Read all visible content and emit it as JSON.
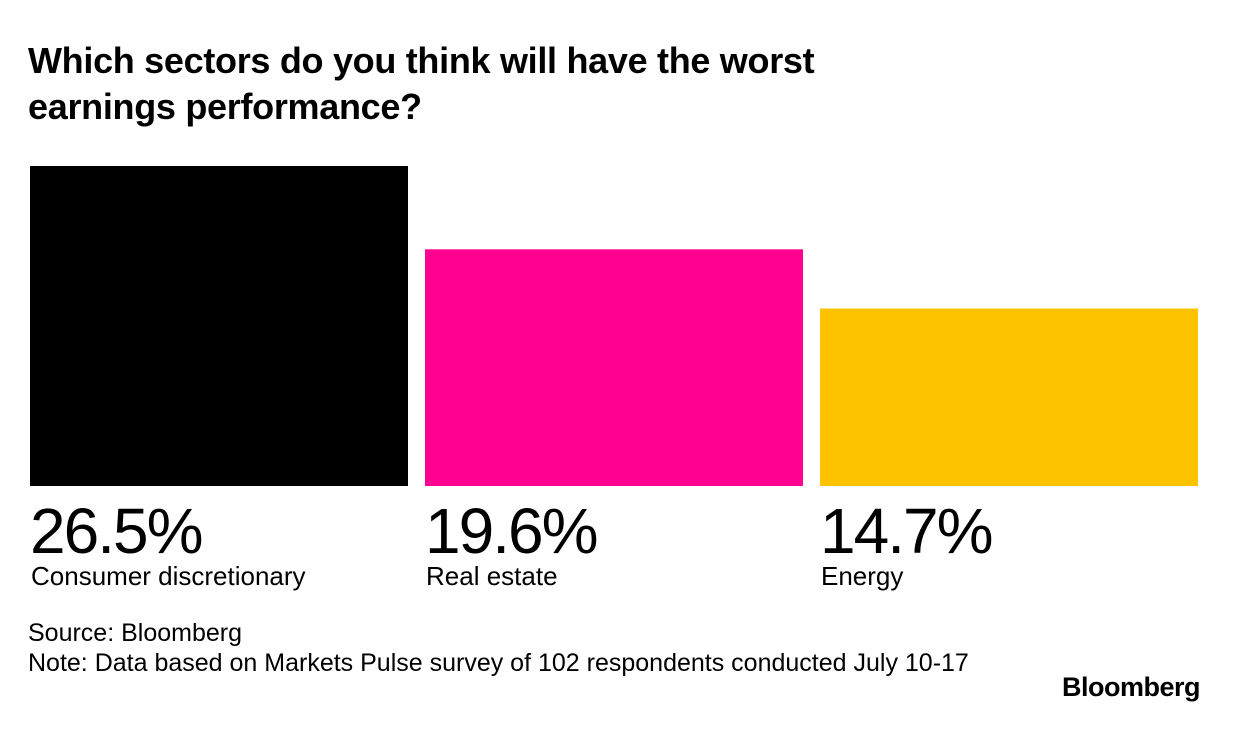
{
  "chart_data": {
    "type": "bar",
    "title": "Which sectors do you think will have the worst earnings performance?",
    "categories": [
      "Consumer discretionary",
      "Real estate",
      "Energy"
    ],
    "values": [
      26.5,
      19.6,
      14.7
    ],
    "value_labels": [
      "26.5%",
      "19.6%",
      "14.7%"
    ],
    "colors": [
      "#000000",
      "#ff0090",
      "#fdc300"
    ],
    "unit": "%",
    "ylim": [
      0,
      26.5
    ],
    "grid": false,
    "legend": "none"
  },
  "footer": {
    "source": "Source: Bloomberg",
    "note": "Note: Data based on Markets Pulse survey of 102 respondents conducted July 10-17",
    "brand": "Bloomberg"
  }
}
